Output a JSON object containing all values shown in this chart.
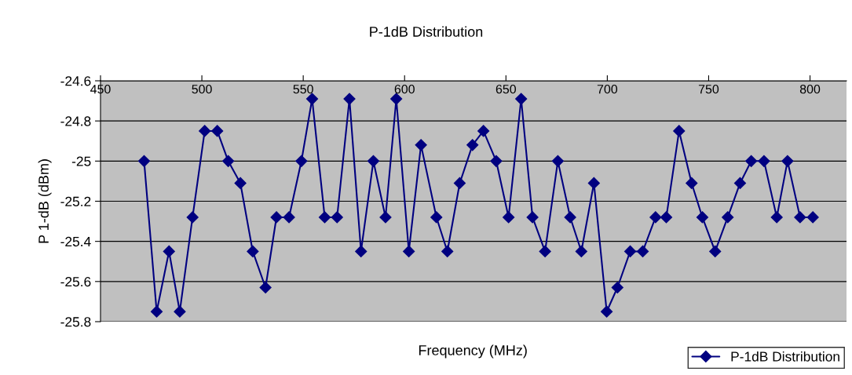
{
  "chart_data": {
    "type": "line",
    "title": "P-1dB Distribution",
    "xlabel": "Frequency (MHz)",
    "ylabel": "P 1-dB (dBm)",
    "x": [
      471.5,
      477.7,
      483.8,
      489.1,
      495.4,
      501.4,
      507.6,
      513.0,
      519.0,
      525.1,
      531.4,
      536.8,
      543.0,
      549.1,
      554.4,
      560.6,
      566.7,
      572.8,
      578.5,
      584.6,
      590.6,
      595.9,
      602.1,
      608.1,
      615.7,
      621.1,
      627.2,
      633.5,
      638.9,
      645.2,
      651.3,
      657.5,
      663.1,
      669.3,
      675.6,
      681.7,
      687.2,
      693.4,
      699.7,
      705.0,
      711.3,
      717.5,
      723.8,
      729.1,
      735.4,
      741.6,
      746.9,
      753.2,
      759.4,
      765.5,
      771.0,
      777.3,
      783.6,
      788.9,
      795.1,
      801.4
    ],
    "series": [
      {
        "name": "P-1dB Distribution",
        "color": "#000080",
        "values": [
          -25.0,
          -25.75,
          -25.45,
          -25.75,
          -25.28,
          -24.85,
          -24.85,
          -25.0,
          -25.11,
          -25.45,
          -25.63,
          -25.28,
          -25.28,
          -25.0,
          -24.69,
          -25.28,
          -25.28,
          -24.69,
          -25.45,
          -25.0,
          -25.28,
          -24.69,
          -25.45,
          -24.92,
          -25.28,
          -25.45,
          -25.11,
          -24.92,
          -24.85,
          -25.0,
          -25.28,
          -24.69,
          -25.28,
          -25.45,
          -25.0,
          -25.28,
          -25.45,
          -25.11,
          -25.75,
          -25.63,
          -25.45,
          -25.45,
          -25.28,
          -25.28,
          -24.85,
          -25.11,
          -25.28,
          -25.45,
          -25.28,
          -25.11,
          -25.0,
          -25.0,
          -25.28,
          -25.0,
          -25.28,
          -25.28
        ]
      }
    ],
    "xlim": [
      450,
      818
    ],
    "xticks": [
      450,
      500,
      550,
      600,
      650,
      700,
      750,
      800
    ],
    "ylim": [
      -25.8,
      -24.6
    ],
    "yticks": [
      -25.8,
      -25.6,
      -25.4,
      -25.2,
      -25,
      -24.8,
      -24.6
    ],
    "grid": "y",
    "legend": "bottom right",
    "marker": "diamond",
    "line_style": "solid"
  }
}
